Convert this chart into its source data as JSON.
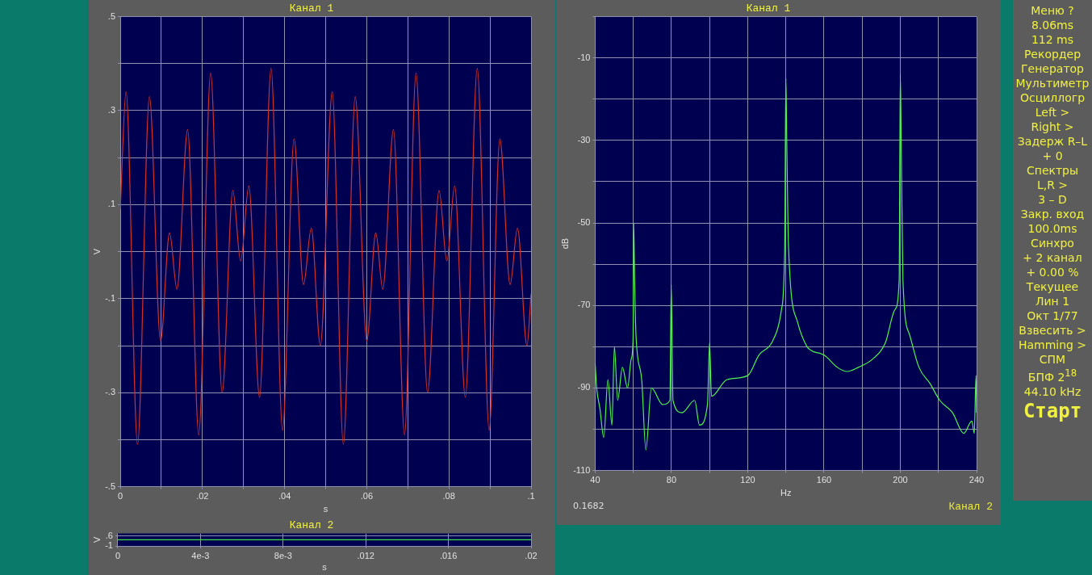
{
  "chart_data": [
    {
      "type": "line",
      "title": "Канал 1",
      "xlabel": "s",
      "ylabel": "V",
      "xlim": [
        0,
        0.1
      ],
      "ylim": [
        -0.5,
        0.5
      ],
      "xticks": [
        0,
        {
          "value": 0.01,
          "label": null
        },
        {
          "value": 0.02,
          "label": ".02"
        },
        {
          "value": 0.03,
          "label": null
        },
        {
          "value": 0.04,
          "label": ".04"
        },
        {
          "value": 0.05,
          "label": null
        },
        {
          "value": 0.06,
          "label": ".06"
        },
        {
          "value": 0.07,
          "label": null
        },
        {
          "value": 0.08,
          "label": ".08"
        },
        {
          "value": 0.09,
          "label": null
        },
        {
          "value": 0.1,
          "label": ".1"
        }
      ],
      "yticks": [
        {
          "value": -0.5,
          "label": "-.5"
        },
        {
          "value": -0.4,
          "label": null
        },
        {
          "value": -0.3,
          "label": "-.3"
        },
        {
          "value": -0.2,
          "label": null
        },
        {
          "value": -0.1,
          "label": "-.1"
        },
        {
          "value": 0,
          "label": null
        },
        {
          "value": 0.1,
          "label": ".1"
        },
        {
          "value": 0.2,
          "label": null
        },
        {
          "value": 0.3,
          "label": ".3"
        },
        {
          "value": 0.4,
          "label": null
        },
        {
          "value": 0.5,
          "label": ".5"
        }
      ],
      "grid": true,
      "series": [
        {
          "color": "#d03030",
          "x": [
            0,
            0.0014,
            0.0042,
            0.0071,
            0.0098,
            0.012,
            0.0138,
            0.0164,
            0.0191,
            0.022,
            0.0248,
            0.0274,
            0.0293,
            0.0313,
            0.0339,
            0.0367,
            0.0395,
            0.0423,
            0.0446,
            0.0465,
            0.0487,
            0.0516,
            0.0543,
            0.0572,
            0.06,
            0.0622,
            0.0639,
            0.0665,
            0.0692,
            0.072,
            0.0748,
            0.0776,
            0.0795,
            0.0814,
            0.084,
            0.0869,
            0.0898,
            0.0924,
            0.0949,
            0.0967,
            0.099,
            0.1
          ],
          "values": [
            0.09,
            0.34,
            -0.41,
            0.33,
            -0.19,
            0.04,
            -0.08,
            0.26,
            -0.39,
            0.38,
            -0.3,
            0.13,
            -0.02,
            0.14,
            -0.31,
            0.39,
            -0.38,
            0.24,
            -0.07,
            0.05,
            -0.2,
            0.34,
            -0.41,
            0.33,
            -0.19,
            0.04,
            -0.08,
            0.26,
            -0.39,
            0.38,
            -0.3,
            0.13,
            -0.02,
            0.14,
            -0.31,
            0.39,
            -0.38,
            0.24,
            -0.07,
            0.05,
            -0.2,
            -0.09
          ]
        }
      ]
    },
    {
      "type": "line",
      "title": "Канал 2",
      "xlabel": "s",
      "ylabel": "V",
      "xlim": [
        0,
        0.02
      ],
      "ylim": [
        -1,
        1
      ],
      "xticks": [
        0,
        {
          "value": 0.004,
          "label": "4e-3"
        },
        {
          "value": 0.008,
          "label": "8e-3"
        },
        {
          "value": 0.012,
          "label": ".012"
        },
        {
          "value": 0.016,
          "label": ".016"
        },
        {
          "value": 0.02,
          "label": ".02"
        }
      ],
      "yticks": [
        -1,
        {
          "value": 0.6,
          "label": ".6"
        }
      ],
      "grid": true,
      "series": [
        {
          "color": "#40e040",
          "x": [
            0,
            0.02
          ],
          "values": [
            0,
            0
          ]
        }
      ]
    },
    {
      "type": "line",
      "title": "Канал 1",
      "xlabel": "Hz",
      "ylabel": "dB",
      "xlim": [
        40,
        240
      ],
      "ylim": [
        -110,
        0
      ],
      "xticks": [
        40,
        {
          "value": 60,
          "label": null
        },
        80,
        {
          "value": 100,
          "label": null
        },
        120,
        {
          "value": 140,
          "label": null
        },
        160,
        {
          "value": 180,
          "label": null
        },
        200,
        {
          "value": 220,
          "label": null
        },
        240
      ],
      "yticks": [
        -110,
        {
          "value": -100,
          "label": null
        },
        -90,
        {
          "value": -80,
          "label": null
        },
        -70,
        {
          "value": -60,
          "label": null
        },
        -50,
        {
          "value": -40,
          "label": null
        },
        -30,
        {
          "value": -20,
          "label": null
        },
        -10,
        {
          "value": 0,
          "label": null
        }
      ],
      "grid": true,
      "annotations": [
        "0.1682",
        "Канал 2"
      ],
      "series": [
        {
          "color": "#50f050",
          "x": [
            40,
            40.8,
            42.5,
            44.5,
            46.7,
            48.8,
            50.1,
            51.8,
            54.3,
            57,
            58.9,
            59.9,
            60.2,
            60.7,
            61.4,
            64.4,
            66.6,
            69.5,
            75.4,
            79.2,
            79.9,
            80.8,
            85.5,
            92.2,
            94.7,
            98.9,
            100,
            101,
            109,
            120,
            125.9,
            132.6,
            137.7,
            139.4,
            140,
            140.5,
            141.4,
            146.1,
            151.1,
            153.6,
            160,
            167,
            172.1,
            178,
            185.5,
            192.2,
            197.2,
            199.4,
            200,
            200.6,
            201.4,
            204.8,
            209.8,
            215.7,
            220.7,
            227.4,
            233.3,
            237.5,
            238.8,
            239.7,
            240
          ],
          "values": [
            -84,
            -90,
            -95,
            -102,
            -88,
            -99,
            -80,
            -93,
            -85,
            -90,
            -83,
            -78,
            -50,
            -64,
            -77,
            -88,
            -105,
            -90,
            -94,
            -93,
            -65,
            -93,
            -96,
            -93,
            -99,
            -94,
            -79,
            -92,
            -88,
            -87,
            -82,
            -79,
            -71,
            -56,
            -15,
            -31,
            -56,
            -74,
            -80,
            -81,
            -82,
            -85,
            -86,
            -85,
            -83,
            -79,
            -71,
            -64,
            -14,
            -35,
            -64,
            -77,
            -85,
            -89,
            -93,
            -96,
            -101,
            -98,
            -101,
            -87,
            -96
          ]
        }
      ]
    },
    {
      "type": "other",
      "annotations": [
        "Меню ?",
        "8.06ms",
        "112 ms",
        "Рекордер",
        "Генератор",
        "Мультиметр",
        "Осциллогр",
        "Left >",
        "Right >",
        "Задерж R–L",
        "+ 0",
        "Спектры",
        "L,R >",
        "3 – D",
        "Закр. вход",
        "100.0ms",
        "Синхро",
        "+ 2 канал",
        "+ 0.00 %",
        "Текущее",
        "Лин 1",
        "Окт 1/77",
        "Взвесить >",
        "Hamming >",
        "СПМ",
        "БПФ 2$^{18}$",
        "44.10 kHz",
        "Старт"
      ]
    }
  ]
}
